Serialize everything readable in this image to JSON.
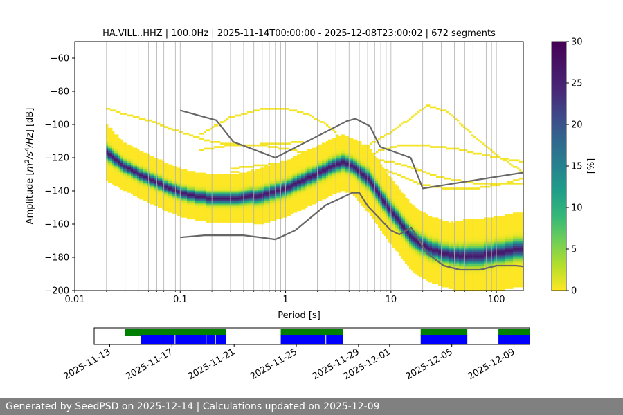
{
  "chart_data": {
    "type": "heatmap",
    "title": "HA.VILL..HHZ | 100.0Hz | 2025-11-14T00:00:00 - 2025-12-08T23:00:02 | 672 segments",
    "xlabel": "Period [s]",
    "ylabel": "Amplitude [m²/s⁴/Hz] [dB]",
    "x_scale": "log",
    "xlim": [
      0.01,
      180
    ],
    "ylim": [
      -200,
      -50
    ],
    "x_ticks": [
      {
        "value": 0.01,
        "label": "0.01"
      },
      {
        "value": 0.1,
        "label": "0.1"
      },
      {
        "value": 1,
        "label": "1"
      },
      {
        "value": 10,
        "label": "10"
      },
      {
        "value": 100,
        "label": "100"
      }
    ],
    "y_ticks": [
      {
        "value": -60,
        "label": "−60"
      },
      {
        "value": -80,
        "label": "−80"
      },
      {
        "value": -100,
        "label": "−100"
      },
      {
        "value": -120,
        "label": "−120"
      },
      {
        "value": -140,
        "label": "−140"
      },
      {
        "value": -160,
        "label": "−160"
      },
      {
        "value": -180,
        "label": "−180"
      },
      {
        "value": -200,
        "label": "−200"
      }
    ],
    "colorbar": {
      "label": "[%]",
      "range": [
        0,
        30
      ],
      "ticks": [
        {
          "value": 0,
          "label": "0"
        },
        {
          "value": 5,
          "label": "5"
        },
        {
          "value": 10,
          "label": "10"
        },
        {
          "value": 15,
          "label": "15"
        },
        {
          "value": 20,
          "label": "20"
        },
        {
          "value": 25,
          "label": "25"
        },
        {
          "value": 30,
          "label": "30"
        }
      ],
      "colormap": "viridis_r"
    },
    "mode_curve": {
      "period": [
        0.02,
        0.03,
        0.05,
        0.08,
        0.12,
        0.2,
        0.35,
        0.6,
        1,
        1.6,
        2.5,
        3.5,
        4.5,
        6,
        8,
        11,
        15,
        22,
        35,
        55,
        80,
        120,
        180
      ],
      "db": [
        -116,
        -125,
        -132,
        -138,
        -142,
        -144,
        -144,
        -142,
        -138,
        -132,
        -126,
        -122,
        -125,
        -132,
        -143,
        -155,
        -166,
        -174,
        -178,
        -179,
        -178,
        -176,
        -174
      ],
      "spread_db": [
        6,
        5,
        5,
        5,
        5,
        5,
        5,
        6,
        6,
        6,
        6,
        6,
        6,
        7,
        7,
        7,
        7,
        7,
        7,
        8,
        8,
        8,
        8
      ]
    },
    "outlier_traces": [
      {
        "period": [
          0.02,
          0.05,
          0.1,
          0.2,
          0.4,
          0.8,
          1.5
        ],
        "db": [
          -90,
          -97,
          -104,
          -110,
          -112,
          -111,
          -110
        ]
      },
      {
        "period": [
          0.15,
          0.3,
          0.6,
          1,
          1.6,
          2.5,
          4,
          6
        ],
        "db": [
          -106,
          -95,
          -90,
          -90,
          -93,
          -100,
          -112,
          -125
        ]
      },
      {
        "period": [
          2.5,
          4,
          6,
          10,
          15,
          22,
          35,
          60,
          100,
          180
        ],
        "db": [
          -118,
          -116,
          -112,
          -104,
          -96,
          -88,
          -92,
          -106,
          -118,
          -128
        ]
      },
      {
        "period": [
          0.15,
          0.3,
          0.6,
          1.2,
          2,
          3.5
        ],
        "db": [
          -115,
          -112,
          -112,
          -115,
          -118,
          -122
        ]
      },
      {
        "period": [
          0.3,
          0.6,
          1,
          2,
          3.5,
          6,
          10,
          15,
          25,
          40,
          70,
          120,
          180
        ],
        "db": [
          -126,
          -124,
          -122,
          -120,
          -118,
          -120,
          -122,
          -125,
          -130,
          -133,
          -135,
          -135,
          -135
        ]
      },
      {
        "period": [
          5,
          8,
          12,
          20,
          40,
          80,
          180
        ],
        "db": [
          -121,
          -115,
          -112,
          -112,
          -114,
          -118,
          -122
        ]
      },
      {
        "period": [
          0.3,
          0.6,
          1,
          1.5,
          3,
          5,
          8,
          12,
          20,
          35,
          60,
          100,
          180
        ],
        "db": [
          -128,
          -130,
          -131,
          -132,
          -130,
          -127,
          -126,
          -130,
          -136,
          -138,
          -138,
          -136,
          -132
        ]
      }
    ],
    "nhnm": {
      "period": [
        0.1,
        0.22,
        0.32,
        0.8,
        3.8,
        4.6,
        6.3,
        7.9,
        15.4,
        20,
        354.8
      ],
      "db": [
        -91.5,
        -97.4,
        -110.5,
        -120,
        -98,
        -96.5,
        -101,
        -113.5,
        -120,
        -138.5,
        -126
      ]
    },
    "nlnm": {
      "period": [
        0.1,
        0.17,
        0.4,
        0.8,
        1.24,
        2.4,
        4.3,
        5,
        6,
        10,
        12,
        15.6,
        21.9,
        31.6,
        45,
        70,
        101,
        154,
        328
      ],
      "db": [
        -168,
        -166.7,
        -166.7,
        -169.2,
        -163.7,
        -148.6,
        -141.1,
        -141.1,
        -149,
        -163.8,
        -166.2,
        -162.1,
        -177.5,
        -185,
        -187.5,
        -187.5,
        -185,
        -185,
        -187.5
      ]
    },
    "colors": {
      "noise_model_line": "#666666",
      "grid": "#b0b0b0"
    }
  },
  "availability": {
    "ticks": [
      "2025-11-13",
      "2025-11-17",
      "2025-11-21",
      "2025-11-25",
      "2025-11-29",
      "2025-12-01",
      "2025-12-05",
      "2025-12-09"
    ],
    "tick_dates": [
      "2025-11-13",
      "2025-11-17",
      "2025-11-21",
      "2025-11-25",
      "2025-11-29",
      "2025-12-01",
      "2025-12-05",
      "2025-12-09"
    ],
    "date_range": [
      "2025-11-12",
      "2025-12-10"
    ],
    "data_spans": [
      [
        "2025-11-14",
        "2025-11-20.5"
      ],
      [
        "2025-11-24",
        "2025-11-28"
      ],
      [
        "2025-12-03",
        "2025-12-06"
      ],
      [
        "2025-12-08",
        "2025-12-10"
      ]
    ],
    "psd_spans": [
      [
        "2025-11-15",
        "2025-11-20.5"
      ],
      [
        "2025-11-24",
        "2025-11-28"
      ],
      [
        "2025-12-03",
        "2025-12-06"
      ],
      [
        "2025-12-08",
        "2025-12-10"
      ]
    ],
    "gap_marks": [
      "2025-11-17.2",
      "2025-11-19.2",
      "2025-11-19.8",
      "2025-11-26.9"
    ],
    "colors": {
      "data": "#008000",
      "psd": "#0000ff"
    }
  },
  "footer": {
    "text": "Generated by SeedPSD on 2025-12-14 | Calculations updated on 2025-12-09",
    "color": "#808080"
  }
}
